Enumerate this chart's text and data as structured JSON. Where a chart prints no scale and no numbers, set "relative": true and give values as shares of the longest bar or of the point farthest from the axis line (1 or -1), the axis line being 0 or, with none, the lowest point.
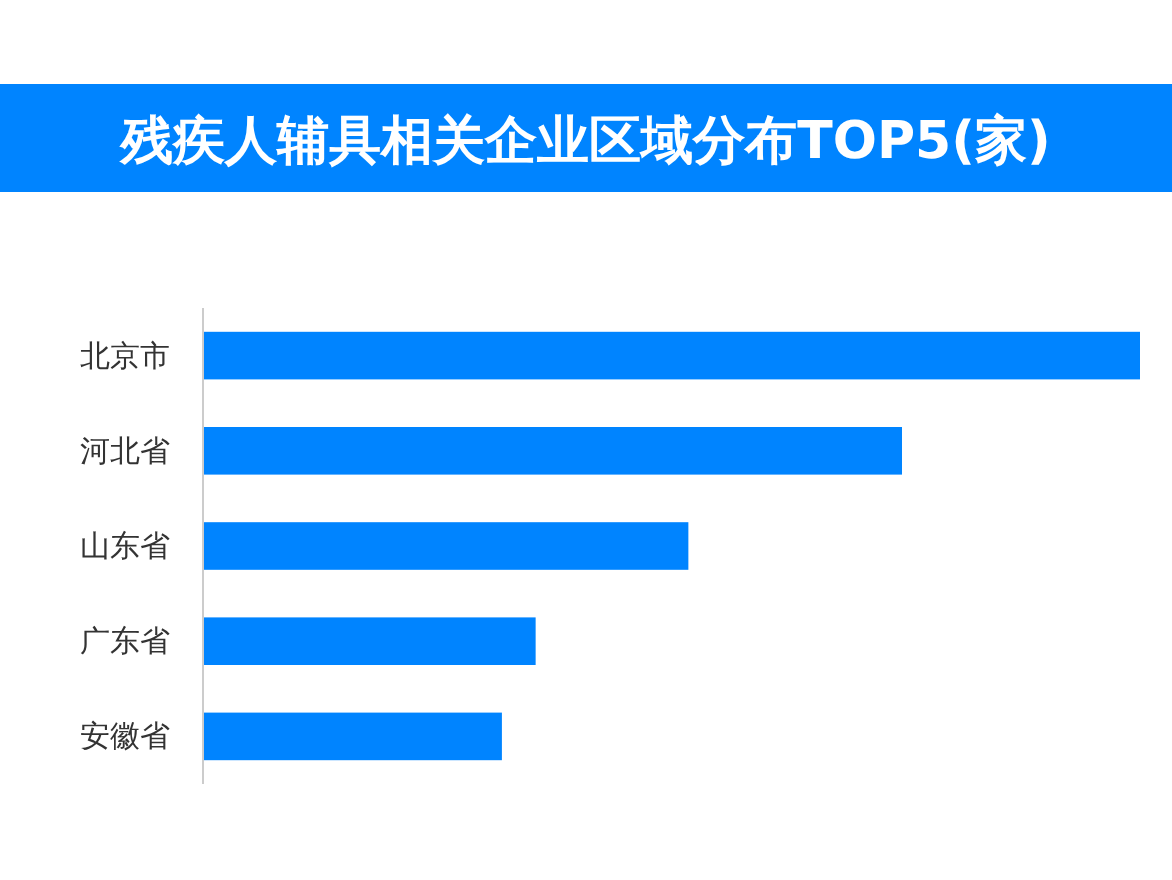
{
  "chart_data": {
    "type": "bar",
    "orientation": "horizontal",
    "relative": true,
    "title": "残疾人辅具相关企业区域分布TOP5(家)",
    "categories": [
      "北京市",
      "河北省",
      "山东省",
      "广东省",
      "安徽省"
    ],
    "values": [
      1,
      0.746,
      0.518,
      0.355,
      0.319
    ],
    "color": "#0084ff"
  }
}
